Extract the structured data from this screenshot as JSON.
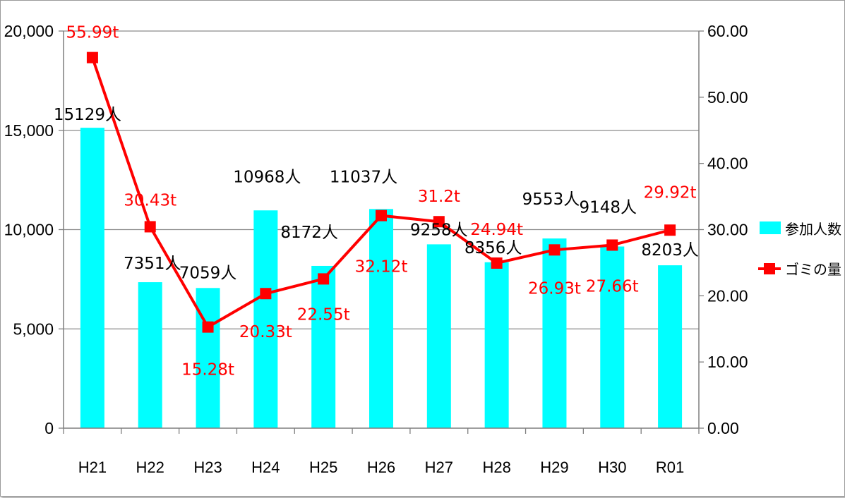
{
  "chart_data": {
    "type": "bar",
    "categories": [
      "H21",
      "H22",
      "H23",
      "H24",
      "H25",
      "H26",
      "H27",
      "H28",
      "H29",
      "H30",
      "R01"
    ],
    "y_left": {
      "min": 0,
      "max": 20000,
      "ticks": [
        "0",
        "5,000",
        "10,000",
        "15,000",
        "20,000"
      ],
      "tick_values": [
        0,
        5000,
        10000,
        15000,
        20000
      ]
    },
    "y_right": {
      "min": 0,
      "max": 60,
      "ticks": [
        "0.00",
        "10.00",
        "20.00",
        "30.00",
        "40.00",
        "50.00",
        "60.00"
      ],
      "tick_values": [
        0,
        10,
        20,
        30,
        40,
        50,
        60
      ]
    },
    "grid": true,
    "legend_position": "right",
    "series": [
      {
        "name": "参加人数",
        "type": "bar",
        "axis": "left",
        "color": "#00ffff",
        "values": [
          15129,
          7351,
          7059,
          10968,
          8172,
          11037,
          9258,
          8356,
          9553,
          9148,
          8203
        ],
        "labels": [
          "15129人",
          "7351人",
          "7059人",
          "10968人",
          "8172人",
          "11037人",
          "9258人",
          "8356人",
          "9553人",
          "9148人",
          "8203人"
        ]
      },
      {
        "name": "ゴミの量",
        "type": "line",
        "axis": "right",
        "color": "#ff0000",
        "values": [
          55.99,
          30.43,
          15.28,
          20.33,
          22.55,
          32.12,
          31.2,
          24.94,
          26.93,
          27.66,
          29.92
        ],
        "labels": [
          "55.99t",
          "30.43t",
          "15.28t",
          "20.33t",
          "22.55t",
          "32.12t",
          "31.2t",
          "24.94t",
          "26.93t",
          "27.66t",
          "29.92t"
        ]
      }
    ]
  }
}
